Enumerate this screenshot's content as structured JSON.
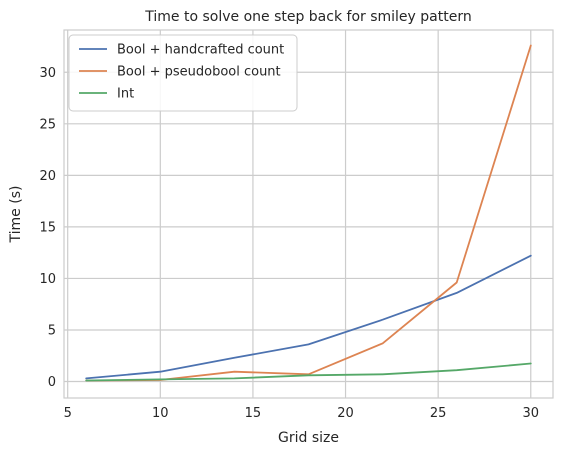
{
  "chart_data": {
    "type": "line",
    "title": "Time to solve one step back for smiley pattern",
    "xlabel": "Grid size",
    "ylabel": "Time (s)",
    "xlim": [
      4.8,
      31.2
    ],
    "ylim": [
      -1.6,
      34.1
    ],
    "x_ticks": [
      5,
      10,
      15,
      20,
      25,
      30
    ],
    "y_ticks": [
      0,
      5,
      10,
      15,
      20,
      25,
      30
    ],
    "grid": true,
    "legend_position": "top-left",
    "series": [
      {
        "name": "Bool + handcrafted count",
        "color": "#4c72b0",
        "x": [
          6,
          10,
          14,
          18,
          22,
          26,
          30
        ],
        "y": [
          0.3,
          0.95,
          2.3,
          3.6,
          6.0,
          8.6,
          12.2
        ]
      },
      {
        "name": "Bool + pseudobool count",
        "color": "#dd8452",
        "x": [
          6,
          10,
          14,
          18,
          22,
          26,
          30
        ],
        "y": [
          0.1,
          0.15,
          0.95,
          0.7,
          3.7,
          9.6,
          32.6
        ]
      },
      {
        "name": "Int",
        "color": "#55a868",
        "x": [
          6,
          10,
          14,
          18,
          22,
          26,
          30
        ],
        "y": [
          0.1,
          0.2,
          0.3,
          0.6,
          0.7,
          1.1,
          1.75
        ]
      }
    ]
  }
}
